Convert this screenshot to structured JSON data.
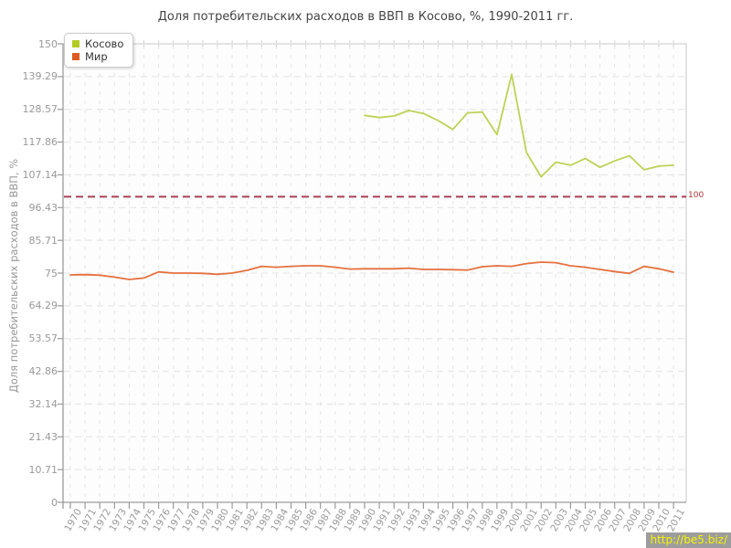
{
  "title": "Доля потребительских расходов в ВВП в Косово, %, 1990-2011 гг.",
  "watermark": "http://be5.biz/",
  "legend": {
    "items": [
      {
        "label": "Косово",
        "color": "#b2cc22"
      },
      {
        "label": "Мир",
        "color": "#dd5b21"
      }
    ]
  },
  "colors": {
    "kosovo_line": "#bed256",
    "world_line": "#e5713f",
    "reference_line": "#a84055",
    "reference_label": "#b03333",
    "grid": "#e8e8e8",
    "axis": "#9a9a9a",
    "border": "#e3e3e3",
    "tick_text": "#999999",
    "title_text": "#444444",
    "watermark_bg": "#9d9d9d",
    "watermark_text": "#f7f400"
  },
  "chart_data": {
    "type": "line",
    "title": "Доля потребительских расходов в ВВП в Косово, %, 1990-2011 гг.",
    "xlabel": "",
    "ylabel": "Доля потребительских расходов в ВВП, %",
    "ylim": [
      0,
      150
    ],
    "grid": true,
    "legend_position": "top-left",
    "x": [
      1970,
      1971,
      1972,
      1973,
      1974,
      1975,
      1976,
      1977,
      1978,
      1979,
      1980,
      1981,
      1982,
      1983,
      1984,
      1985,
      1986,
      1987,
      1988,
      1989,
      1990,
      1991,
      1992,
      1993,
      1994,
      1995,
      1996,
      1997,
      1998,
      1999,
      2000,
      2001,
      2002,
      2003,
      2004,
      2005,
      2006,
      2007,
      2008,
      2009,
      2010,
      2011
    ],
    "yticks": [
      0,
      10.71,
      21.43,
      32.14,
      42.86,
      53.57,
      64.29,
      75,
      85.71,
      96.43,
      107.14,
      117.86,
      128.57,
      139.29,
      150
    ],
    "ytick_labels": [
      "0",
      "10.71",
      "21.43",
      "32.14",
      "42.86",
      "53.57",
      "64.29",
      "75",
      "85.71",
      "96.43",
      "107.14",
      "117.86",
      "128.57",
      "139.29",
      "150"
    ],
    "reference_line": {
      "value": 100,
      "label": "100",
      "style": "dashed",
      "color": "#a84055"
    },
    "series": [
      {
        "name": "Косово",
        "color": "#bed256",
        "x_start": 1990,
        "values": [
          126.6,
          125.9,
          126.4,
          128.2,
          127.2,
          124.9,
          122.0,
          127.4,
          127.7,
          120.3,
          140.0,
          114.5,
          106.5,
          111.3,
          110.3,
          112.5,
          109.6,
          111.7,
          113.4,
          108.8,
          110.0,
          110.3
        ]
      },
      {
        "name": "Мир",
        "color": "#e5713f",
        "x_start": 1970,
        "values": [
          74.4,
          74.5,
          74.3,
          73.7,
          72.9,
          73.4,
          75.4,
          75.0,
          75.0,
          74.9,
          74.6,
          75.0,
          75.9,
          77.2,
          76.9,
          77.2,
          77.4,
          77.4,
          76.9,
          76.3,
          76.4,
          76.4,
          76.4,
          76.6,
          76.2,
          76.2,
          76.1,
          76.0,
          77.1,
          77.4,
          77.2,
          78.1,
          78.6,
          78.4,
          77.4,
          76.9,
          76.2,
          75.5,
          74.9,
          77.2,
          76.4,
          75.3
        ]
      }
    ]
  }
}
